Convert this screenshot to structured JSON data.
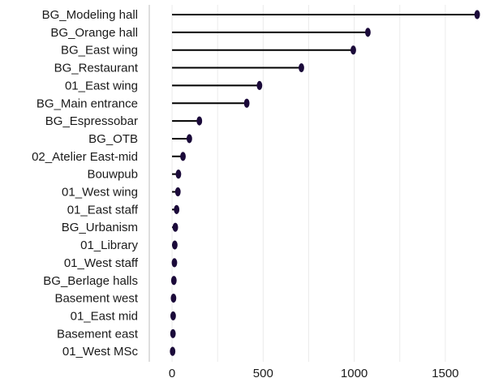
{
  "chart_data": {
    "type": "lollipop",
    "title": "",
    "xlabel": "",
    "ylabel": "",
    "categories": [
      "BG_Modeling hall",
      "BG_Orange hall",
      "BG_East wing",
      "BG_Restaurant",
      "01_East wing",
      "BG_Main entrance",
      "BG_Espressobar",
      "BG_OTB",
      "02_Atelier East-mid",
      "Bouwpub",
      "01_West wing",
      "01_East staff",
      "BG_Urbanism",
      "01_Library",
      "01_West staff",
      "BG_Berlage halls",
      "Basement west",
      "01_East mid",
      "Basement east",
      "01_West MSc"
    ],
    "values": [
      1675,
      1075,
      995,
      710,
      480,
      410,
      150,
      95,
      60,
      35,
      32,
      25,
      18,
      15,
      13,
      10,
      8,
      6,
      5,
      3
    ],
    "xlim": [
      -125,
      1710
    ],
    "xticks": [
      0,
      500,
      1000,
      1500
    ],
    "xtick_labels": [
      "0",
      "500",
      "1000",
      "1500"
    ],
    "grid": "vertical",
    "colors": {
      "stem": "#000000",
      "dot": "#1b0a3a",
      "grid": "#ebebeb"
    }
  }
}
